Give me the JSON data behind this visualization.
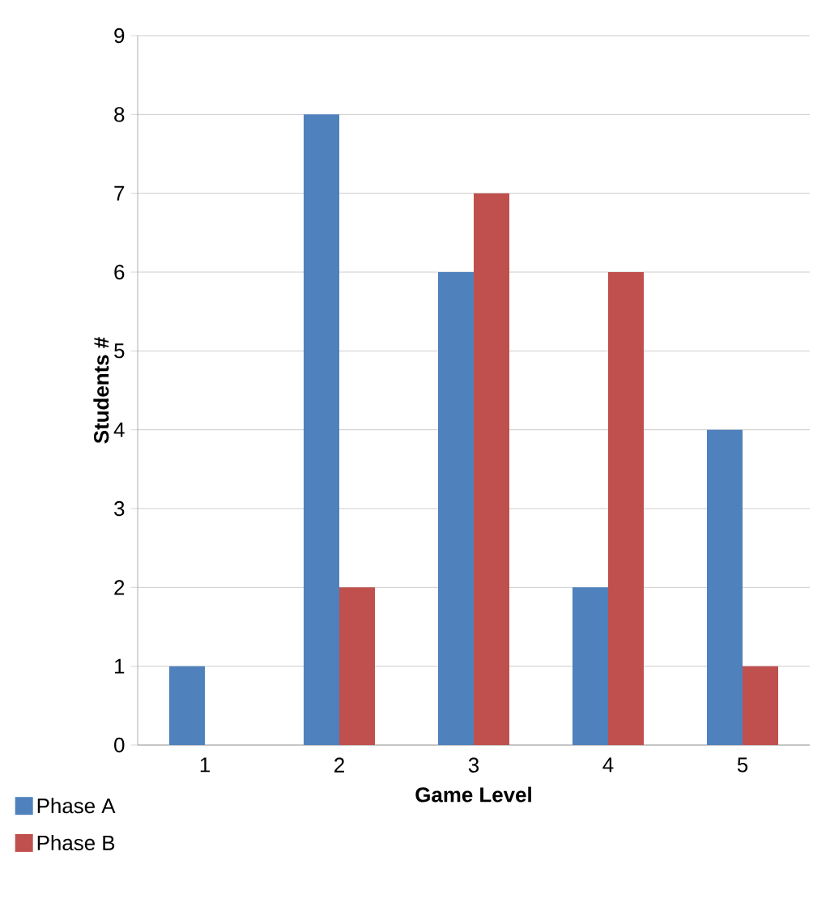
{
  "chart_data": {
    "type": "bar",
    "xlabel": "Game Level",
    "ylabel": "Students #",
    "categories": [
      "1",
      "2",
      "3",
      "4",
      "5"
    ],
    "series": [
      {
        "name": "Phase A",
        "color": "#4f81bd",
        "values": [
          1,
          8,
          6,
          2,
          4
        ]
      },
      {
        "name": "Phase B",
        "color": "#c0504d",
        "values": [
          0,
          2,
          7,
          6,
          1
        ]
      }
    ],
    "ylim": [
      0,
      9
    ],
    "yticks": [
      0,
      1,
      2,
      3,
      4,
      5,
      6,
      7,
      8,
      9
    ],
    "grid": "y",
    "legend": "bottom left"
  }
}
